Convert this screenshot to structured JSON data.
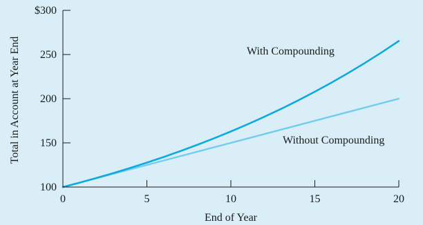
{
  "chart_data": {
    "type": "line",
    "xlabel": "End of Year",
    "ylabel": "Total in Account at Year End",
    "xlim": [
      0,
      20
    ],
    "ylim": [
      100,
      300
    ],
    "x_ticks": [
      0,
      5,
      10,
      15,
      20
    ],
    "y_ticks": [
      100,
      150,
      200,
      250,
      300
    ],
    "y_tick_labels": [
      "100",
      "150",
      "200",
      "250",
      "$300"
    ],
    "grid": false,
    "series": [
      {
        "name": "With Compounding",
        "color": "#0ea9dd",
        "x": [
          0,
          1,
          2,
          3,
          4,
          5,
          6,
          7,
          8,
          9,
          10,
          11,
          12,
          13,
          14,
          15,
          16,
          17,
          18,
          19,
          20
        ],
        "y": [
          100,
          105,
          110.25,
          115.76,
          121.55,
          127.63,
          134.01,
          140.71,
          147.75,
          155.13,
          162.89,
          171.03,
          179.59,
          188.56,
          197.99,
          207.89,
          218.29,
          229.2,
          240.66,
          252.7,
          265.33
        ]
      },
      {
        "name": "Without Compounding",
        "color": "#6fcdee",
        "x": [
          0,
          20
        ],
        "y": [
          100,
          200
        ]
      }
    ]
  }
}
